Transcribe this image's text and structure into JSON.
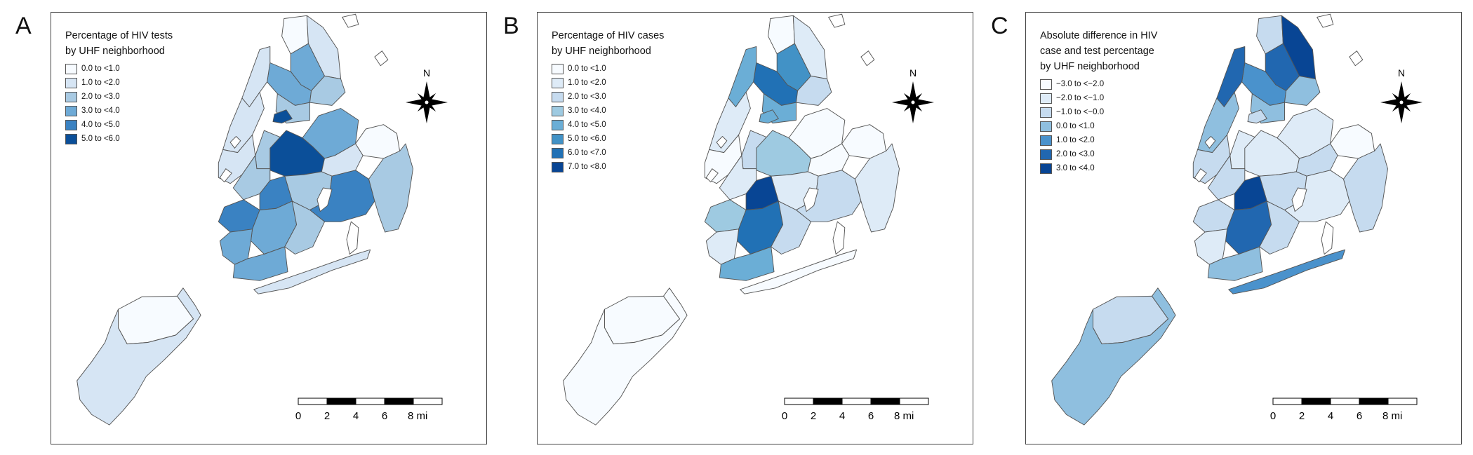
{
  "panels": [
    {
      "letter": "A",
      "legend_title": "Percentage of HIV tests\nby UHF neighborhood",
      "legend": [
        {
          "label": "0.0 to <1.0",
          "color": "#f7fbff"
        },
        {
          "label": "1.0 to <2.0",
          "color": "#d6e5f4"
        },
        {
          "label": "2.0 to <3.0",
          "color": "#a8cae3"
        },
        {
          "label": "3.0 to <4.0",
          "color": "#6eaad6"
        },
        {
          "label": "4.0 to <5.0",
          "color": "#3a82c2"
        },
        {
          "label": "5.0 to <6.0",
          "color": "#0b4f99"
        }
      ],
      "fills": {
        "si_n": 0,
        "si_s": 1,
        "bx_nw": 0,
        "bx_ne": 1,
        "bx_w": 3,
        "bx_c": 3,
        "bx_e": 2,
        "bx_s": 2,
        "mn_n": 1,
        "mn_c": 1,
        "mn_s": 1,
        "rikers": 5,
        "qn_w": 2,
        "qn_c": 5,
        "qn_ne": 3,
        "qn_e": 0,
        "qn_se": 1,
        "qn_s": 2,
        "qn_sw": 4,
        "qn_far": 2,
        "bk_n": 2,
        "bk_c": 4,
        "bk_w": 4,
        "bk_s": 3,
        "bk_se": 2,
        "bk_sw": 3,
        "bk_e": 3,
        "rock": 1
      }
    },
    {
      "letter": "B",
      "legend_title": "Percentage of HIV cases\nby UHF neighborhood",
      "legend": [
        {
          "label": "0.0 to <1.0",
          "color": "#f7fbff"
        },
        {
          "label": "1.0 to <2.0",
          "color": "#deebf7"
        },
        {
          "label": "2.0 to <3.0",
          "color": "#c6dbef"
        },
        {
          "label": "3.0 to <4.0",
          "color": "#9ecae1"
        },
        {
          "label": "4.0 to <5.0",
          "color": "#6baed6"
        },
        {
          "label": "5.0 to <6.0",
          "color": "#4292c6"
        },
        {
          "label": "6.0 to <7.0",
          "color": "#2171b5"
        },
        {
          "label": "7.0 to <8.0",
          "color": "#084594"
        }
      ],
      "fills": {
        "si_n": 0,
        "si_s": 0,
        "bx_nw": 0,
        "bx_ne": 1,
        "bx_w": 5,
        "bx_c": 6,
        "bx_e": 2,
        "bx_s": 4,
        "mn_n": 4,
        "mn_c": 1,
        "mn_s": 0,
        "rikers": 4,
        "qn_w": 2,
        "qn_c": 3,
        "qn_ne": 0,
        "qn_e": 0,
        "qn_se": 0,
        "qn_s": 1,
        "qn_sw": 2,
        "qn_far": 1,
        "bk_n": 1,
        "bk_c": 7,
        "bk_w": 3,
        "bk_s": 6,
        "bk_se": 2,
        "bk_sw": 1,
        "bk_e": 4,
        "rock": 0
      }
    },
    {
      "letter": "C",
      "legend_title": "Absolute difference in HIV\ncase and test percentage\nby UHF neighborhood",
      "legend": [
        {
          "label": "−3.0 to <−2.0",
          "color": "#f7fbff"
        },
        {
          "label": "−2.0 to <−1.0",
          "color": "#deebf7"
        },
        {
          "label": "−1.0 to <−0.0",
          "color": "#c6dbef"
        },
        {
          "label": "0.0 to <1.0",
          "color": "#8fbfdf"
        },
        {
          "label": "1.0 to <2.0",
          "color": "#4a92cc"
        },
        {
          "label": "2.0 to <3.0",
          "color": "#2167b0"
        },
        {
          "label": "3.0 to <4.0",
          "color": "#084594"
        }
      ],
      "fills": {
        "si_n": 2,
        "si_s": 3,
        "bx_nw": 2,
        "bx_ne": 6,
        "bx_w": 5,
        "bx_c": 4,
        "bx_e": 3,
        "bx_s": 3,
        "mn_n": 5,
        "mn_c": 3,
        "mn_s": 2,
        "rikers": 2,
        "qn_w": 1,
        "qn_c": 1,
        "qn_ne": 1,
        "qn_e": 0,
        "qn_se": 2,
        "qn_s": 2,
        "qn_sw": 1,
        "qn_far": 2,
        "bk_n": 2,
        "bk_c": 6,
        "bk_w": 2,
        "bk_s": 5,
        "bk_se": 2,
        "bk_sw": 1,
        "bk_e": 3,
        "rock": 4
      }
    }
  ],
  "compass_label": "N",
  "scale_ticks": [
    "0",
    "2",
    "4",
    "6",
    "8 mi"
  ]
}
